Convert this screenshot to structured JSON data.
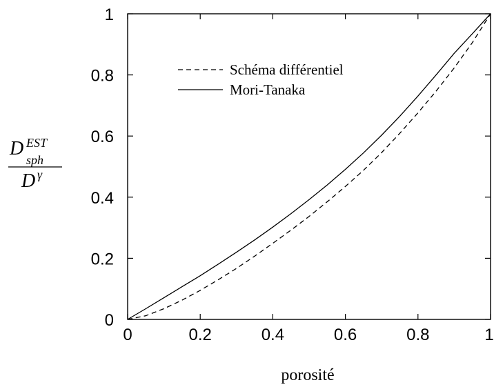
{
  "chart_data": {
    "type": "line",
    "title": "",
    "xlabel": "porosité",
    "ylabel": {
      "numerator_base": "D",
      "numerator_sub": "sph",
      "numerator_sup": "EST",
      "denominator_base": "D",
      "denominator_sup": "γ"
    },
    "xlim": [
      0,
      1
    ],
    "ylim": [
      0,
      1
    ],
    "xticks": [
      "0",
      "0.2",
      "0.4",
      "0.6",
      "0.8",
      "1"
    ],
    "yticks": [
      "0",
      "0.2",
      "0.4",
      "0.6",
      "0.8",
      "1"
    ],
    "grid": false,
    "legend_position": "top-center",
    "series": [
      {
        "name": "Schéma différentiel",
        "style": "dashed",
        "color": "#000000",
        "x": [
          0,
          0.05,
          0.1,
          0.15,
          0.2,
          0.25,
          0.3,
          0.35,
          0.4,
          0.45,
          0.5,
          0.55,
          0.6,
          0.65,
          0.7,
          0.75,
          0.8,
          0.85,
          0.9,
          0.95,
          1
        ],
        "y": [
          0,
          0.012,
          0.035,
          0.063,
          0.095,
          0.13,
          0.167,
          0.207,
          0.249,
          0.292,
          0.337,
          0.385,
          0.435,
          0.488,
          0.546,
          0.609,
          0.676,
          0.747,
          0.823,
          0.906,
          1
        ]
      },
      {
        "name": "Mori-Tanaka",
        "style": "solid",
        "color": "#000000",
        "x": [
          0,
          0.05,
          0.1,
          0.15,
          0.2,
          0.25,
          0.3,
          0.35,
          0.4,
          0.45,
          0.5,
          0.55,
          0.6,
          0.65,
          0.7,
          0.75,
          0.8,
          0.85,
          0.9,
          0.95,
          1
        ],
        "y": [
          0,
          0.035,
          0.071,
          0.107,
          0.143,
          0.181,
          0.22,
          0.26,
          0.302,
          0.346,
          0.392,
          0.44,
          0.491,
          0.545,
          0.603,
          0.665,
          0.731,
          0.8,
          0.871,
          0.935,
          1
        ]
      }
    ]
  }
}
